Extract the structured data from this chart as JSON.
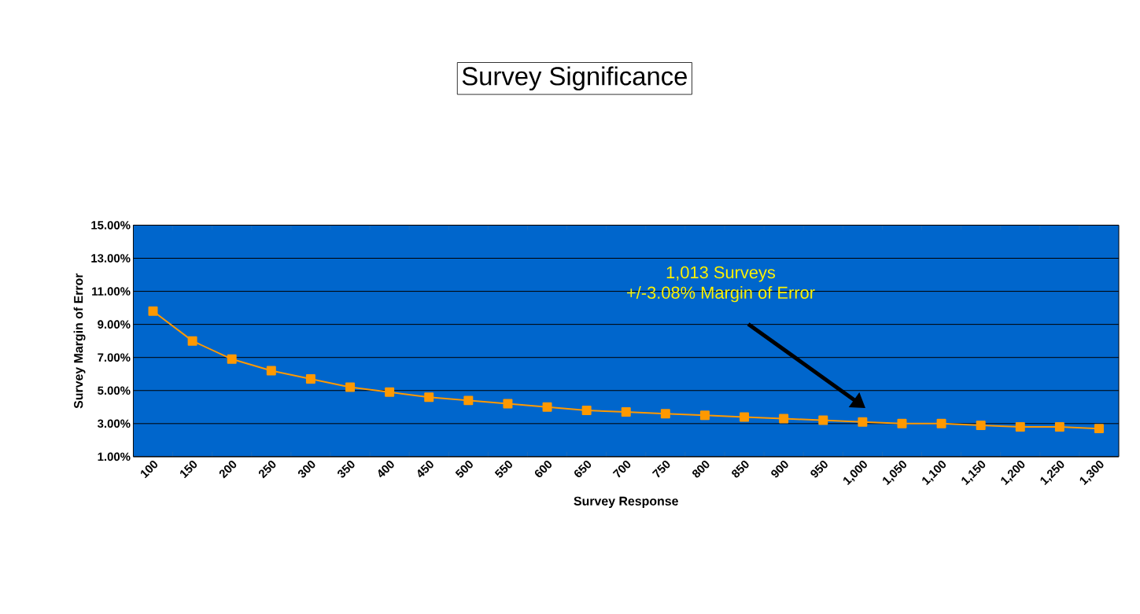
{
  "chart_data": {
    "type": "line",
    "title": "Survey Significance",
    "xlabel": "Survey Response",
    "ylabel": "Survey Margin of Error",
    "categories": [
      "100",
      "150",
      "200",
      "250",
      "300",
      "350",
      "400",
      "450",
      "500",
      "550",
      "600",
      "650",
      "700",
      "750",
      "800",
      "850",
      "900",
      "950",
      "1,000",
      "1,050",
      "1,100",
      "1,150",
      "1,200",
      "1,250",
      "1,300"
    ],
    "series": [
      {
        "color": "#ff9900",
        "values": [
          9.8,
          8.0,
          6.9,
          6.2,
          5.7,
          5.2,
          4.9,
          4.6,
          4.4,
          4.2,
          4.0,
          3.8,
          3.7,
          3.6,
          3.5,
          3.4,
          3.3,
          3.2,
          3.1,
          3.0,
          3.0,
          2.9,
          2.8,
          2.8,
          2.7
        ]
      }
    ],
    "ylim": [
      1,
      15
    ],
    "yticks": [
      {
        "value": 1,
        "label": "1.00%"
      },
      {
        "value": 3,
        "label": "3.00%"
      },
      {
        "value": 5,
        "label": "5.00%"
      },
      {
        "value": 7,
        "label": "7.00%"
      },
      {
        "value": 9,
        "label": "9.00%"
      },
      {
        "value": 11,
        "label": "11.00%"
      },
      {
        "value": 13,
        "label": "13.00%"
      },
      {
        "value": 15,
        "label": "15.00%"
      }
    ],
    "grid": "y",
    "marker": "square",
    "line_style": "solid",
    "annotations": [
      "1,013 Surveys",
      "+/-3.08% Margin of Error"
    ]
  }
}
